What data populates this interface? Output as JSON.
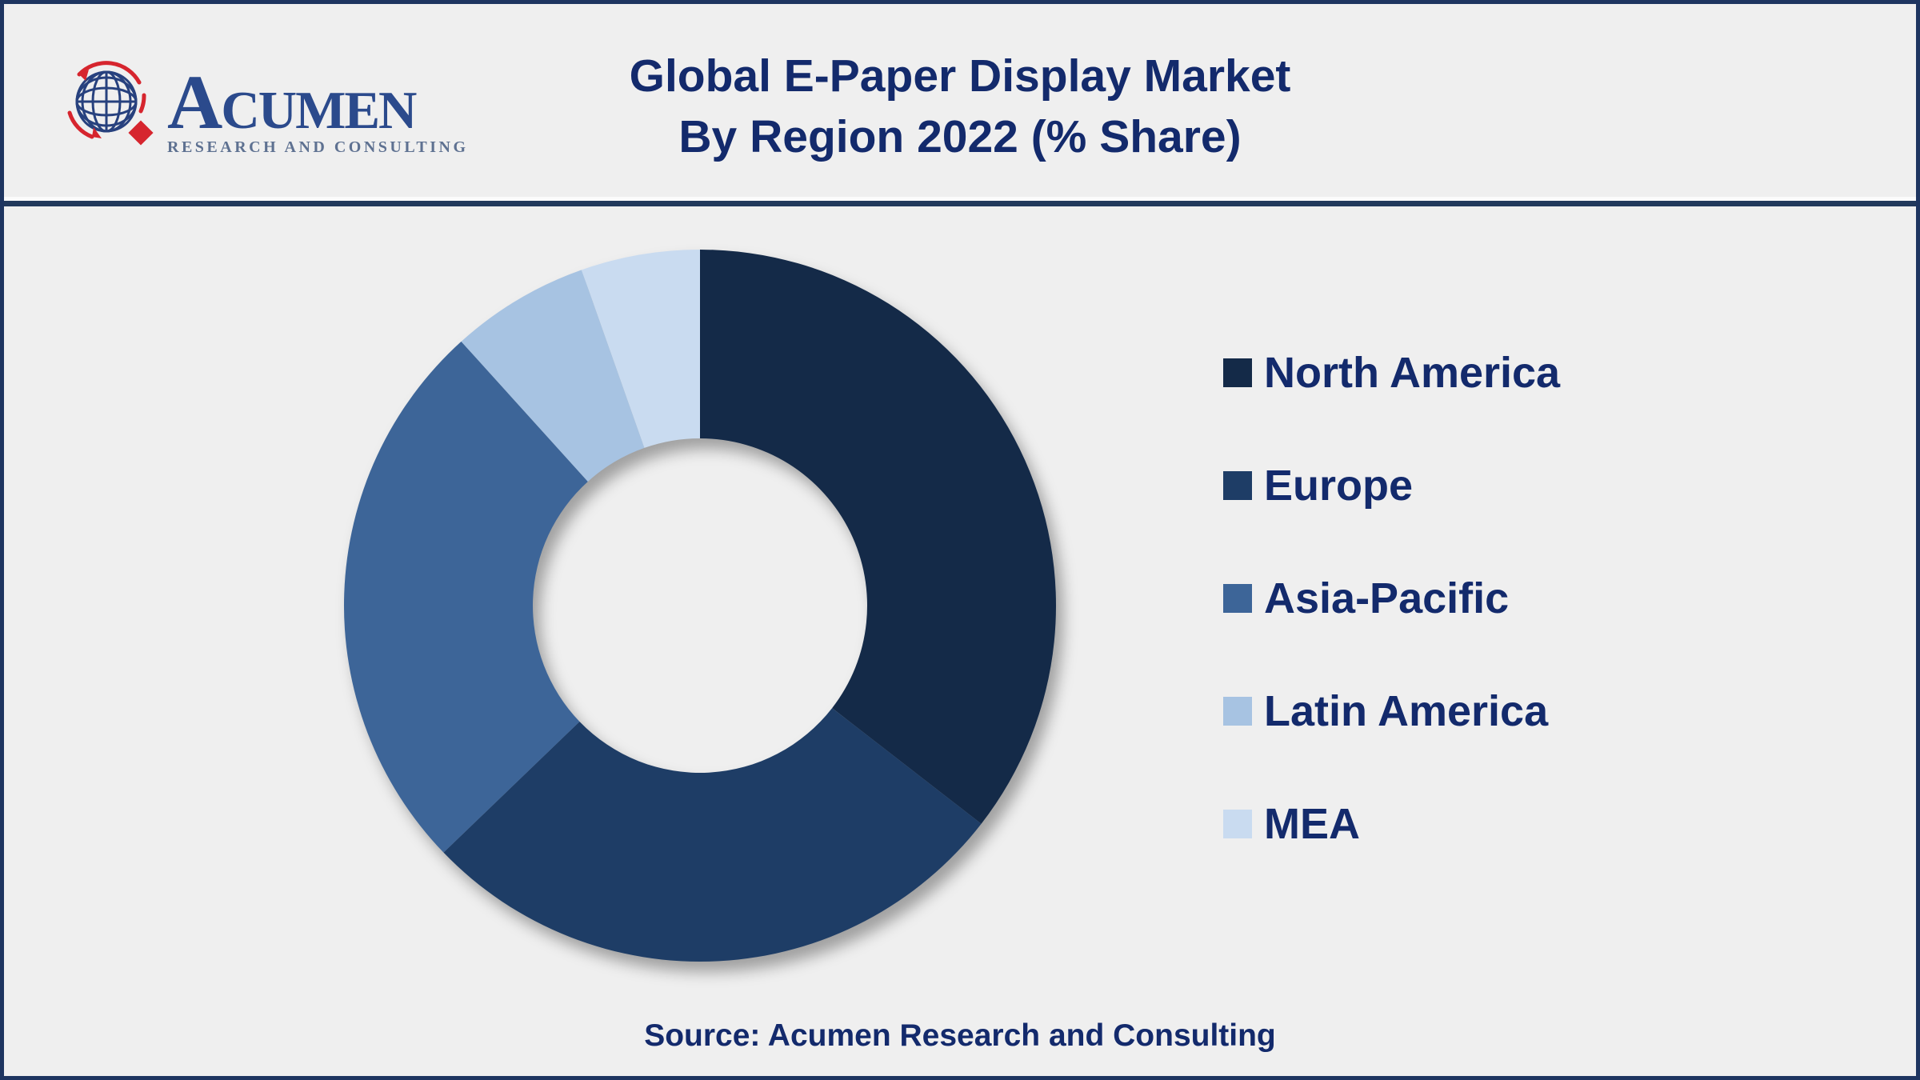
{
  "page": {
    "background_color": "#EFEFEF",
    "border_color": "#1E3560",
    "divider_color": "#22395C"
  },
  "header": {
    "logo": {
      "icon": "globe-logo-icon",
      "brand": "Acumen",
      "tagline": "RESEARCH AND CONSULTING",
      "brand_color": "#2B4A8C",
      "accent_red": "#D6252E"
    },
    "title_line1": "Global E-Paper Display Market",
    "title_line2": "By Region 2022 (% Share)",
    "title_color": "#132A6C"
  },
  "chart_data": {
    "type": "pie",
    "subtype": "donut",
    "title": "Global E-Paper Display Market By Region 2022 (% Share)",
    "unit": "% share",
    "categories": [
      "North America",
      "Europe",
      "Asia-Pacific",
      "Latin America",
      "MEA"
    ],
    "values": [
      35.5,
      27.3,
      25.5,
      6.3,
      5.4
    ],
    "colors": [
      "#142A48",
      "#1E3D66",
      "#3D6598",
      "#A7C3E2",
      "#C9DBF0"
    ],
    "start_angle_deg": 0,
    "direction": "clockwise",
    "inner_radius_ratio": 0.47,
    "data_labels_visible": false,
    "legend_position": "right",
    "legend_text_color": "#132A6C"
  },
  "footer": {
    "source_text": "Source: Acumen Research and Consulting"
  }
}
